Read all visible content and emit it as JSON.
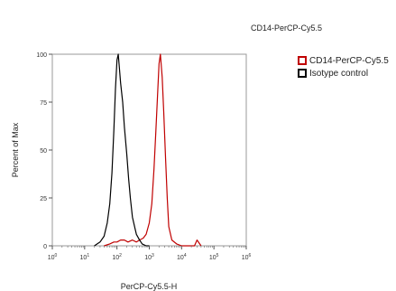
{
  "chart_data": {
    "type": "line",
    "title": "CD14-PerCP-Cy5.5",
    "xlabel": "PerCP-Cy5.5-H",
    "ylabel": "Percent of Max",
    "xscale": "log",
    "xlim": [
      1,
      1000000
    ],
    "ylim": [
      0,
      100
    ],
    "xticks": [
      {
        "value": 1,
        "base": "10",
        "exp": "0"
      },
      {
        "value": 10,
        "base": "10",
        "exp": "1"
      },
      {
        "value": 100,
        "base": "10",
        "exp": "2"
      },
      {
        "value": 1000,
        "base": "10",
        "exp": "3"
      },
      {
        "value": 10000,
        "base": "10",
        "exp": "4"
      },
      {
        "value": 100000,
        "base": "10",
        "exp": "5"
      },
      {
        "value": 1000000,
        "base": "10",
        "exp": "6"
      }
    ],
    "yticks": [
      "0",
      "25",
      "50",
      "75",
      "100"
    ],
    "legend_position": "right",
    "series": [
      {
        "name": "CD14-PerCP-Cy5.5",
        "color": "#c00000",
        "x": [
          40,
          60,
          80,
          100,
          130,
          170,
          220,
          300,
          400,
          500,
          650,
          800,
          1000,
          1200,
          1400,
          1600,
          1800,
          2000,
          2200,
          2500,
          2800,
          3200,
          3600,
          4000,
          5000,
          7000,
          10000,
          15000,
          25000,
          30000,
          40000
        ],
        "y": [
          0,
          1,
          2,
          2,
          3,
          3,
          2,
          3,
          2,
          3,
          4,
          6,
          12,
          22,
          40,
          60,
          78,
          95,
          100,
          88,
          70,
          45,
          25,
          10,
          3,
          1,
          0,
          0,
          0,
          3,
          0
        ]
      },
      {
        "name": "Isotype control",
        "color": "#000000",
        "x": [
          20,
          30,
          40,
          50,
          60,
          70,
          80,
          90,
          100,
          110,
          120,
          130,
          150,
          170,
          200,
          230,
          260,
          300,
          350,
          400,
          500,
          600,
          800,
          1000
        ],
        "y": [
          0,
          2,
          5,
          12,
          22,
          38,
          60,
          82,
          97,
          100,
          92,
          85,
          75,
          62,
          48,
          35,
          25,
          15,
          10,
          6,
          3,
          1,
          0,
          0
        ]
      }
    ]
  }
}
